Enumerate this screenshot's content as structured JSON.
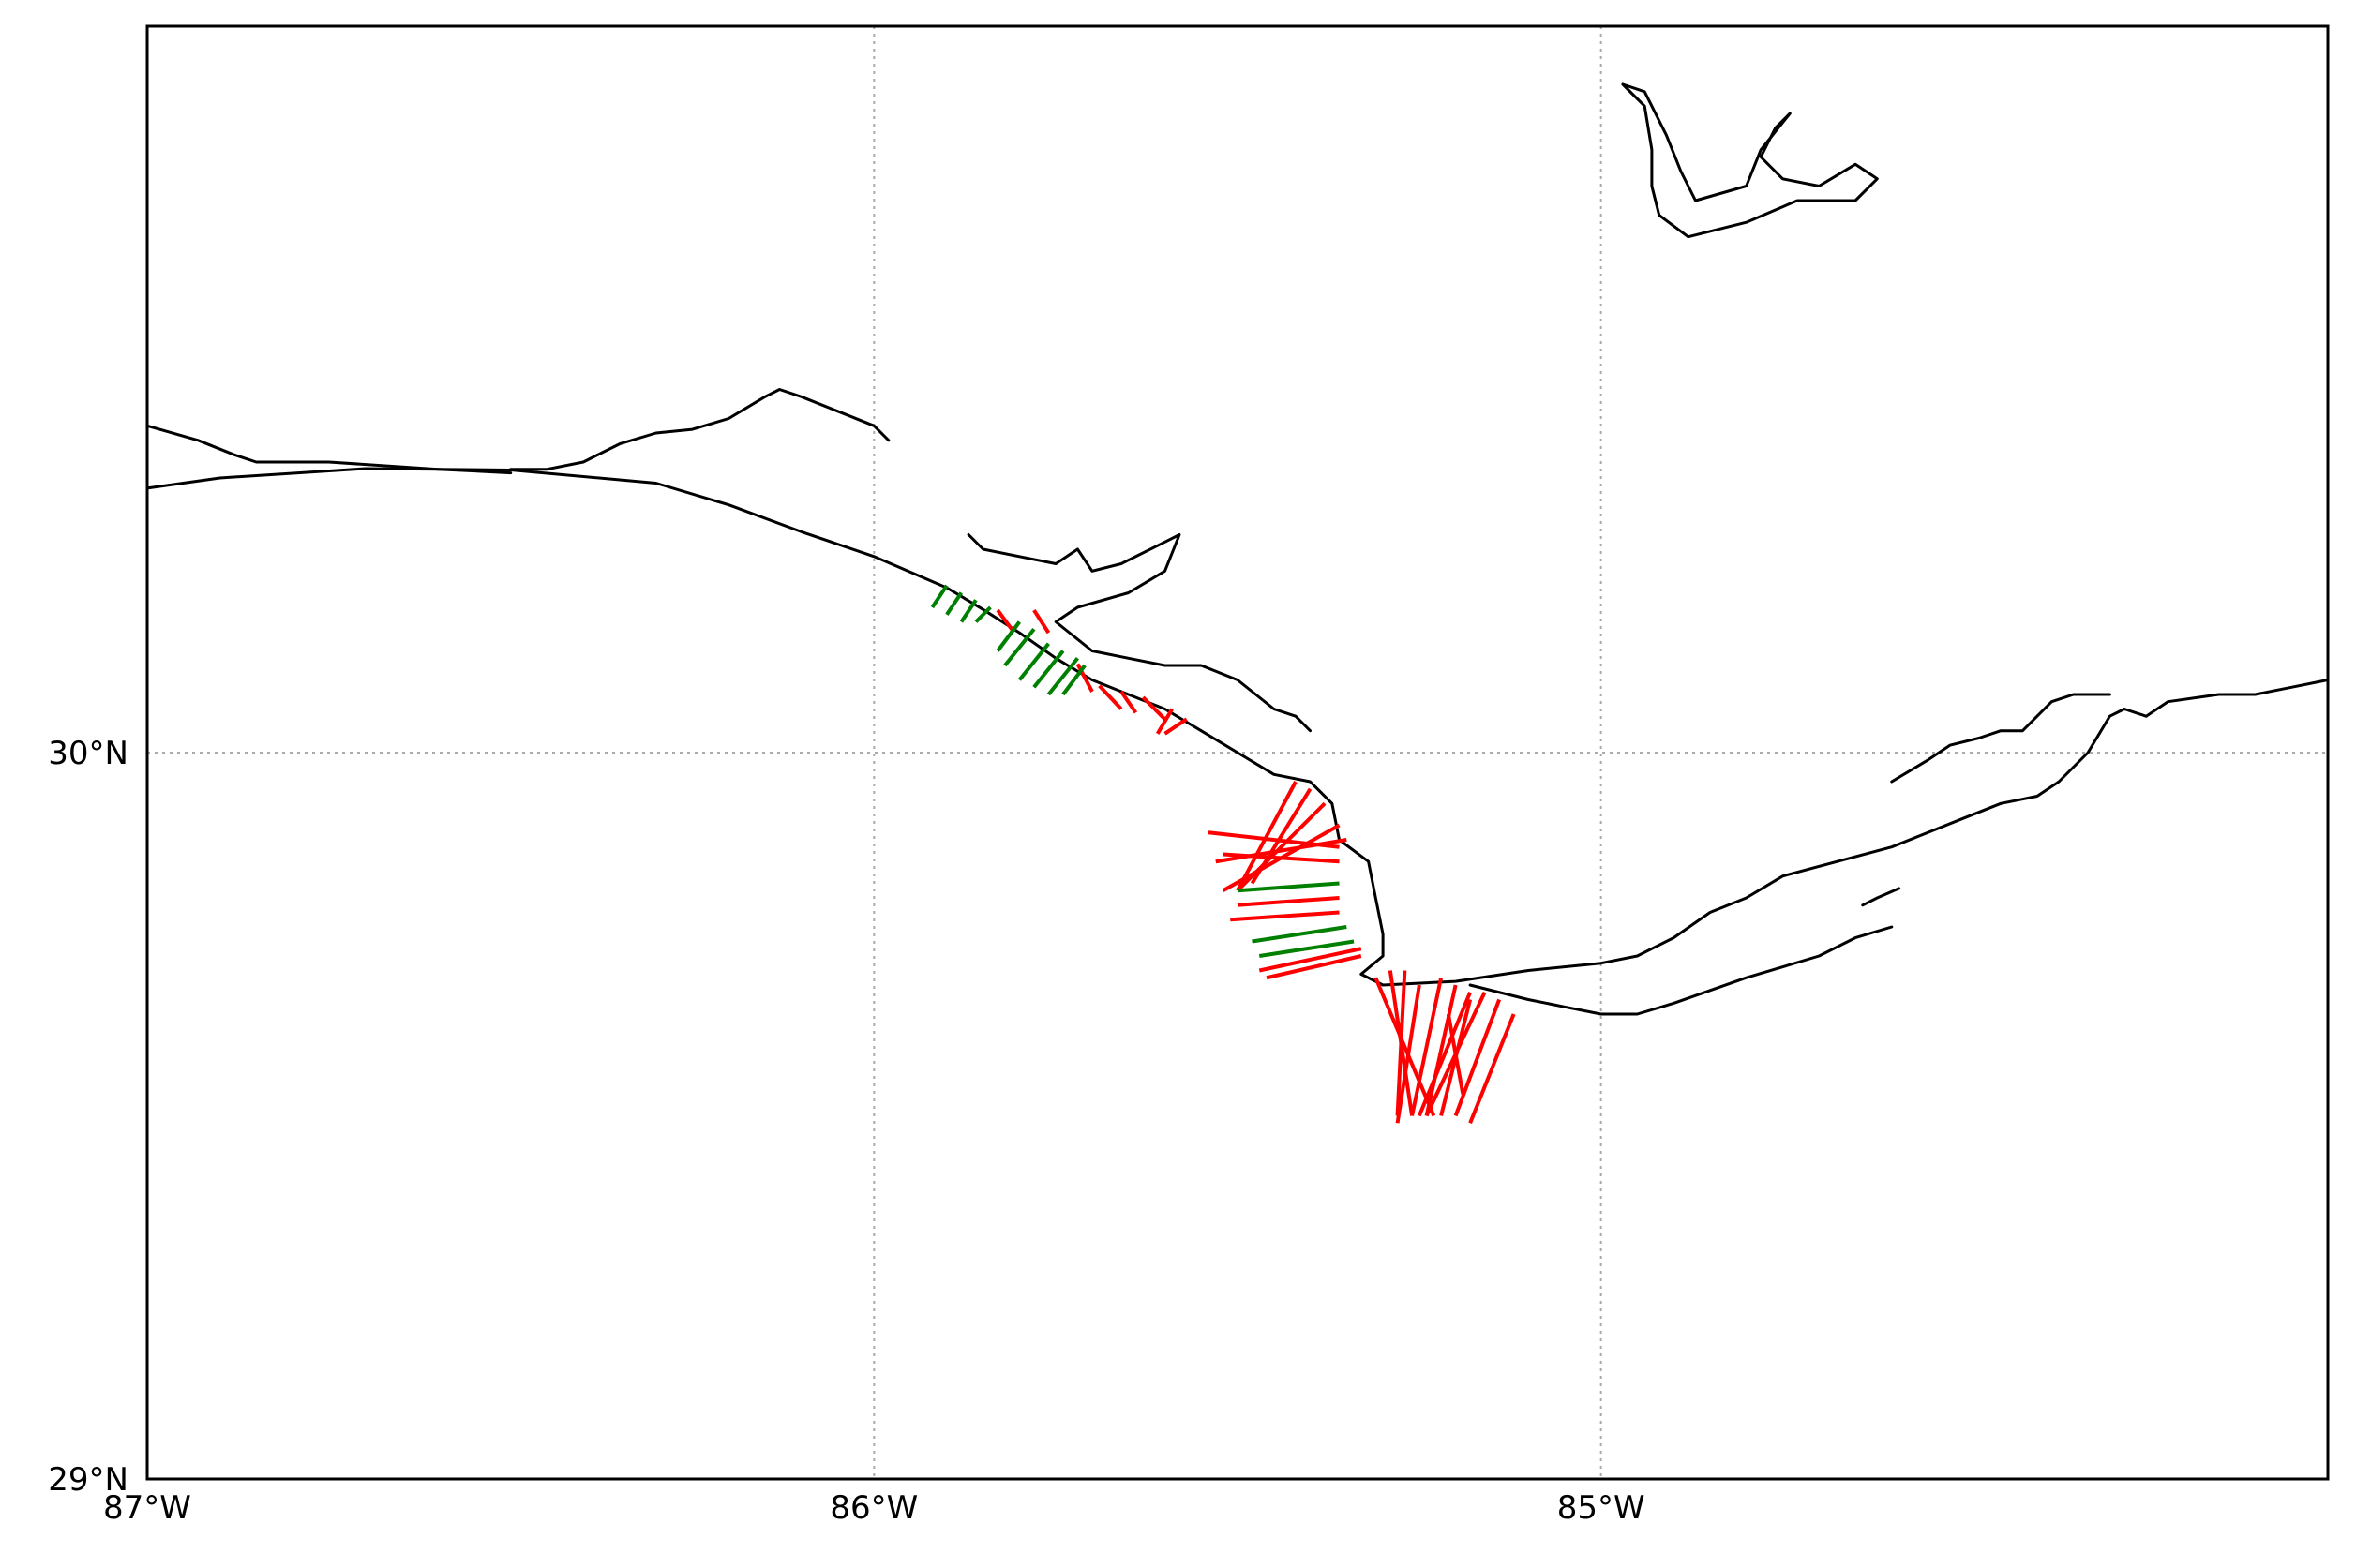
{
  "map": {
    "extent": {
      "lon": [
        -87.0,
        -84.0
      ],
      "lat": [
        29.0,
        31.0
      ]
    },
    "gridlines": {
      "lons": [
        -86.0,
        -85.0
      ],
      "lats": [
        30.0
      ],
      "style": "dotted",
      "color": "#aaaaaa"
    },
    "x_ticks": [
      {
        "lon": -87.0,
        "label": "87°W"
      },
      {
        "lon": -86.0,
        "label": "86°W"
      },
      {
        "lon": -85.0,
        "label": "85°W"
      }
    ],
    "y_ticks": [
      {
        "lat": 29.0,
        "label": "29°N"
      },
      {
        "lat": 30.0,
        "label": "30°N"
      }
    ],
    "colors": {
      "coastline": "#000000",
      "transect_red": "#ff0000",
      "transect_green": "#008000",
      "frame": "#000000"
    },
    "coastlines": [
      {
        "name": "gulf-coast-main",
        "points": [
          [
            -87.0,
            30.364
          ],
          [
            -86.9,
            30.378
          ],
          [
            -86.7,
            30.391
          ],
          [
            -86.5,
            30.389
          ],
          [
            -86.3,
            30.371
          ],
          [
            -86.2,
            30.341
          ],
          [
            -86.1,
            30.304
          ],
          [
            -86.0,
            30.27
          ],
          [
            -85.9,
            30.227
          ],
          [
            -85.85,
            30.197
          ],
          [
            -85.8,
            30.165
          ],
          [
            -85.75,
            30.13
          ],
          [
            -85.7,
            30.1
          ],
          [
            -85.6,
            30.06
          ],
          [
            -85.55,
            30.03
          ],
          [
            -85.5,
            30.0
          ],
          [
            -85.45,
            29.97
          ],
          [
            -85.4,
            29.96
          ],
          [
            -85.37,
            29.93
          ],
          [
            -85.36,
            29.88
          ],
          [
            -85.32,
            29.85
          ],
          [
            -85.31,
            29.8
          ],
          [
            -85.3,
            29.75
          ],
          [
            -85.3,
            29.72
          ],
          [
            -85.33,
            29.695
          ],
          [
            -85.3,
            29.68
          ],
          [
            -85.2,
            29.685
          ],
          [
            -85.1,
            29.7
          ],
          [
            -85.0,
            29.71
          ],
          [
            -84.95,
            29.72
          ],
          [
            -84.9,
            29.745
          ],
          [
            -84.85,
            29.78
          ],
          [
            -84.8,
            29.8
          ],
          [
            -84.75,
            29.83
          ],
          [
            -84.6,
            29.87
          ],
          [
            -84.5,
            29.91
          ],
          [
            -84.45,
            29.93
          ]
        ]
      },
      {
        "name": "st-joseph-spit",
        "points": [
          [
            -85.18,
            29.68
          ],
          [
            -85.1,
            29.66
          ],
          [
            -85.05,
            29.65
          ],
          [
            -85.0,
            29.64
          ],
          [
            -84.95,
            29.64
          ],
          [
            -84.9,
            29.655
          ],
          [
            -84.8,
            29.69
          ],
          [
            -84.7,
            29.72
          ],
          [
            -84.65,
            29.745
          ],
          [
            -84.6,
            29.76
          ]
        ]
      },
      {
        "name": "dog-island",
        "points": [
          [
            -84.64,
            29.79
          ],
          [
            -84.62,
            29.8
          ],
          [
            -84.59,
            29.813
          ]
        ]
      },
      {
        "name": "coast-east",
        "points": [
          [
            -84.45,
            29.93
          ],
          [
            -84.4,
            29.94
          ],
          [
            -84.37,
            29.96
          ],
          [
            -84.35,
            29.98
          ],
          [
            -84.33,
            30.0
          ],
          [
            -84.3,
            30.05
          ],
          [
            -84.28,
            30.06
          ],
          [
            -84.25,
            30.05
          ],
          [
            -84.22,
            30.07
          ],
          [
            -84.15,
            30.08
          ],
          [
            -84.1,
            30.08
          ],
          [
            -84.05,
            30.09
          ],
          [
            -84.0,
            30.1
          ]
        ]
      },
      {
        "name": "pensacola-bay",
        "points": [
          [
            -87.0,
            30.45
          ],
          [
            -86.93,
            30.43
          ],
          [
            -86.88,
            30.41
          ],
          [
            -86.85,
            30.4
          ],
          [
            -86.75,
            30.4
          ],
          [
            -86.6,
            30.39
          ],
          [
            -86.5,
            30.385
          ]
        ]
      },
      {
        "name": "choctawhatchee-bay",
        "points": [
          [
            -86.5,
            30.39
          ],
          [
            -86.45,
            30.39
          ],
          [
            -86.4,
            30.4
          ],
          [
            -86.35,
            30.425
          ],
          [
            -86.3,
            30.44
          ],
          [
            -86.25,
            30.445
          ],
          [
            -86.2,
            30.46
          ],
          [
            -86.15,
            30.49
          ],
          [
            -86.13,
            30.5
          ],
          [
            -86.1,
            30.49
          ],
          [
            -86.05,
            30.47
          ],
          [
            -86.0,
            30.45
          ],
          [
            -85.98,
            30.43
          ]
        ]
      },
      {
        "name": "st-andrew-bay",
        "points": [
          [
            -85.87,
            30.3
          ],
          [
            -85.85,
            30.28
          ],
          [
            -85.8,
            30.27
          ],
          [
            -85.75,
            30.26
          ],
          [
            -85.72,
            30.28
          ],
          [
            -85.7,
            30.25
          ],
          [
            -85.66,
            30.26
          ],
          [
            -85.6,
            30.29
          ],
          [
            -85.58,
            30.3
          ],
          [
            -85.6,
            30.25
          ],
          [
            -85.65,
            30.22
          ],
          [
            -85.72,
            30.2
          ],
          [
            -85.75,
            30.18
          ],
          [
            -85.7,
            30.14
          ],
          [
            -85.65,
            30.13
          ],
          [
            -85.6,
            30.12
          ],
          [
            -85.55,
            30.12
          ],
          [
            -85.5,
            30.1
          ],
          [
            -85.45,
            30.06
          ],
          [
            -85.42,
            30.05
          ],
          [
            -85.4,
            30.03
          ]
        ]
      },
      {
        "name": "lake-seminole",
        "points": [
          [
            -84.97,
            30.92
          ],
          [
            -84.94,
            30.89
          ],
          [
            -84.93,
            30.83
          ],
          [
            -84.93,
            30.78
          ],
          [
            -84.92,
            30.74
          ],
          [
            -84.88,
            30.71
          ],
          [
            -84.8,
            30.73
          ],
          [
            -84.73,
            30.76
          ],
          [
            -84.65,
            30.76
          ],
          [
            -84.62,
            30.79
          ],
          [
            -84.65,
            30.81
          ],
          [
            -84.7,
            30.78
          ],
          [
            -84.75,
            30.79
          ],
          [
            -84.78,
            30.82
          ],
          [
            -84.76,
            30.86
          ],
          [
            -84.74,
            30.88
          ],
          [
            -84.78,
            30.83
          ],
          [
            -84.8,
            30.78
          ],
          [
            -84.87,
            30.76
          ],
          [
            -84.89,
            30.8
          ],
          [
            -84.91,
            30.85
          ],
          [
            -84.94,
            30.91
          ],
          [
            -84.97,
            30.92
          ]
        ]
      },
      {
        "name": "apalachee-marsh",
        "points": [
          [
            -84.6,
            29.96
          ],
          [
            -84.55,
            29.99
          ],
          [
            -84.52,
            30.01
          ],
          [
            -84.48,
            30.02
          ],
          [
            -84.45,
            30.03
          ],
          [
            -84.42,
            30.03
          ],
          [
            -84.4,
            30.05
          ],
          [
            -84.38,
            30.07
          ],
          [
            -84.35,
            30.08
          ],
          [
            -84.3,
            30.08
          ]
        ]
      }
    ],
    "transects": [
      {
        "color": "red",
        "points": [
          [
            -85.83,
            30.196
          ],
          [
            -85.81,
            30.169
          ]
        ]
      },
      {
        "color": "red",
        "points": [
          [
            -85.78,
            30.196
          ],
          [
            -85.76,
            30.165
          ]
        ]
      },
      {
        "color": "red",
        "points": [
          [
            -85.72,
            30.122
          ],
          [
            -85.7,
            30.084
          ]
        ]
      },
      {
        "color": "red",
        "points": [
          [
            -85.69,
            30.092
          ],
          [
            -85.66,
            30.06
          ]
        ]
      },
      {
        "color": "red",
        "points": [
          [
            -85.66,
            30.084
          ],
          [
            -85.64,
            30.055
          ]
        ]
      },
      {
        "color": "red",
        "points": [
          [
            -85.63,
            30.076
          ],
          [
            -85.6,
            30.046
          ]
        ]
      },
      {
        "color": "red",
        "points": [
          [
            -85.59,
            30.06
          ],
          [
            -85.61,
            30.026
          ]
        ]
      },
      {
        "color": "red",
        "points": [
          [
            -85.57,
            30.046
          ],
          [
            -85.6,
            30.026
          ]
        ]
      },
      {
        "color": "green",
        "points": [
          [
            -85.9,
            30.23
          ],
          [
            -85.92,
            30.2
          ]
        ]
      },
      {
        "color": "green",
        "points": [
          [
            -85.88,
            30.22
          ],
          [
            -85.9,
            30.19
          ]
        ]
      },
      {
        "color": "green",
        "points": [
          [
            -85.86,
            30.21
          ],
          [
            -85.88,
            30.18
          ]
        ]
      },
      {
        "color": "green",
        "points": [
          [
            -85.84,
            30.2
          ],
          [
            -85.86,
            30.18
          ]
        ]
      },
      {
        "color": "green",
        "points": [
          [
            -85.8,
            30.18
          ],
          [
            -85.83,
            30.14
          ]
        ]
      },
      {
        "color": "green",
        "points": [
          [
            -85.78,
            30.17
          ],
          [
            -85.82,
            30.12
          ]
        ]
      },
      {
        "color": "green",
        "points": [
          [
            -85.76,
            30.15
          ],
          [
            -85.8,
            30.1
          ]
        ]
      },
      {
        "color": "green",
        "points": [
          [
            -85.74,
            30.14
          ],
          [
            -85.78,
            30.09
          ]
        ]
      },
      {
        "color": "green",
        "points": [
          [
            -85.72,
            30.13
          ],
          [
            -85.76,
            30.08
          ]
        ]
      },
      {
        "color": "green",
        "points": [
          [
            -85.71,
            30.12
          ],
          [
            -85.74,
            30.08
          ]
        ]
      },
      {
        "color": "red",
        "points": [
          [
            -85.42,
            29.96
          ],
          [
            -85.5,
            29.81
          ]
        ]
      },
      {
        "color": "red",
        "points": [
          [
            -85.4,
            29.95
          ],
          [
            -85.48,
            29.82
          ]
        ]
      },
      {
        "color": "red",
        "points": [
          [
            -85.38,
            29.93
          ],
          [
            -85.5,
            29.81
          ]
        ]
      },
      {
        "color": "red",
        "points": [
          [
            -85.36,
            29.9
          ],
          [
            -85.52,
            29.81
          ]
        ]
      },
      {
        "color": "red",
        "points": [
          [
            -85.35,
            29.88
          ],
          [
            -85.53,
            29.85
          ]
        ]
      },
      {
        "color": "red",
        "points": [
          [
            -85.36,
            29.87
          ],
          [
            -85.54,
            29.89
          ]
        ]
      },
      {
        "color": "red",
        "points": [
          [
            -85.36,
            29.85
          ],
          [
            -85.52,
            29.86
          ]
        ]
      },
      {
        "color": "red",
        "points": [
          [
            -85.36,
            29.8
          ],
          [
            -85.5,
            29.79
          ]
        ]
      },
      {
        "color": "red",
        "points": [
          [
            -85.36,
            29.78
          ],
          [
            -85.51,
            29.77
          ]
        ]
      },
      {
        "color": "green",
        "points": [
          [
            -85.36,
            29.82
          ],
          [
            -85.5,
            29.81
          ]
        ]
      },
      {
        "color": "green",
        "points": [
          [
            -85.35,
            29.76
          ],
          [
            -85.48,
            29.74
          ]
        ]
      },
      {
        "color": "green",
        "points": [
          [
            -85.34,
            29.74
          ],
          [
            -85.47,
            29.72
          ]
        ]
      },
      {
        "color": "red",
        "points": [
          [
            -85.33,
            29.72
          ],
          [
            -85.46,
            29.69
          ]
        ]
      },
      {
        "color": "red",
        "points": [
          [
            -85.33,
            29.73
          ],
          [
            -85.47,
            29.7
          ]
        ]
      },
      {
        "color": "red",
        "points": [
          [
            -85.31,
            29.69
          ],
          [
            -85.23,
            29.5
          ]
        ]
      },
      {
        "color": "red",
        "points": [
          [
            -85.29,
            29.7
          ],
          [
            -85.26,
            29.5
          ]
        ]
      },
      {
        "color": "red",
        "points": [
          [
            -85.27,
            29.7
          ],
          [
            -85.28,
            29.5
          ]
        ]
      },
      {
        "color": "red",
        "points": [
          [
            -85.25,
            29.68
          ],
          [
            -85.28,
            29.49
          ]
        ]
      },
      {
        "color": "red",
        "points": [
          [
            -85.22,
            29.69
          ],
          [
            -85.26,
            29.5
          ]
        ]
      },
      {
        "color": "red",
        "points": [
          [
            -85.2,
            29.68
          ],
          [
            -85.24,
            29.5
          ]
        ]
      },
      {
        "color": "red",
        "points": [
          [
            -85.18,
            29.67
          ],
          [
            -85.25,
            29.5
          ]
        ]
      },
      {
        "color": "red",
        "points": [
          [
            -85.16,
            29.67
          ],
          [
            -85.24,
            29.5
          ]
        ]
      },
      {
        "color": "red",
        "points": [
          [
            -85.21,
            29.64
          ],
          [
            -85.19,
            29.53
          ]
        ]
      },
      {
        "color": "red",
        "points": [
          [
            -85.18,
            29.66
          ],
          [
            -85.22,
            29.5
          ]
        ]
      },
      {
        "color": "red",
        "points": [
          [
            -85.14,
            29.66
          ],
          [
            -85.2,
            29.5
          ]
        ]
      },
      {
        "color": "red",
        "points": [
          [
            -85.12,
            29.64
          ],
          [
            -85.18,
            29.49
          ]
        ]
      }
    ]
  }
}
